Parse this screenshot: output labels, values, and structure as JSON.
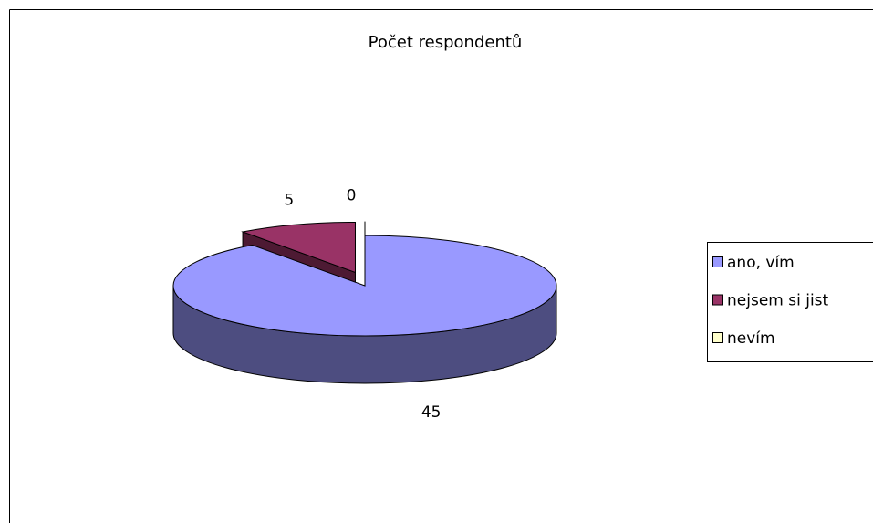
{
  "chart_data": {
    "type": "pie",
    "title": "Počet respondentů",
    "categories": [
      "ano, vím",
      "nejsem si jist",
      "nevím"
    ],
    "values": [
      45,
      5,
      0
    ],
    "colors": [
      "#9999ff",
      "#993366",
      "#ffffcc"
    ],
    "legend": "right"
  }
}
